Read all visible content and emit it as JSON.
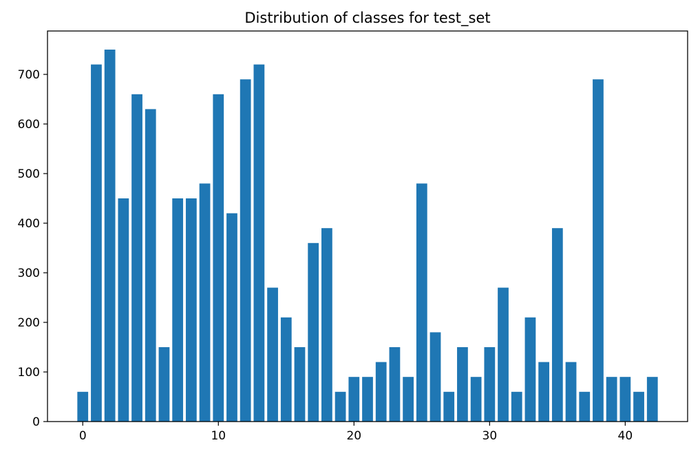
{
  "chart_data": {
    "type": "bar",
    "title": "Distribution of classes for test_set",
    "xlabel": "",
    "ylabel": "",
    "bar_color": "#1f77b4",
    "x": [
      0,
      1,
      2,
      3,
      4,
      5,
      6,
      7,
      8,
      9,
      10,
      11,
      12,
      13,
      14,
      15,
      16,
      17,
      18,
      19,
      20,
      21,
      22,
      23,
      24,
      25,
      26,
      27,
      28,
      29,
      30,
      31,
      32,
      33,
      34,
      35,
      36,
      37,
      38,
      39,
      40,
      41,
      42
    ],
    "values": [
      60,
      720,
      750,
      450,
      660,
      630,
      150,
      450,
      450,
      480,
      660,
      420,
      690,
      720,
      270,
      210,
      150,
      360,
      390,
      60,
      90,
      90,
      120,
      150,
      90,
      480,
      180,
      60,
      150,
      90,
      150,
      270,
      60,
      210,
      120,
      390,
      120,
      60,
      690,
      90,
      90,
      60,
      90
    ],
    "xlim": [
      -2.6,
      44.6
    ],
    "ylim": [
      0,
      787.5
    ],
    "xticks": [
      0,
      10,
      20,
      30,
      40
    ],
    "xtick_labels": [
      "0",
      "10",
      "20",
      "30",
      "40"
    ],
    "yticks": [
      0,
      100,
      200,
      300,
      400,
      500,
      600,
      700
    ],
    "ytick_labels": [
      "0",
      "100",
      "200",
      "300",
      "400",
      "500",
      "600",
      "700"
    ],
    "grid": false,
    "legend": "none"
  }
}
